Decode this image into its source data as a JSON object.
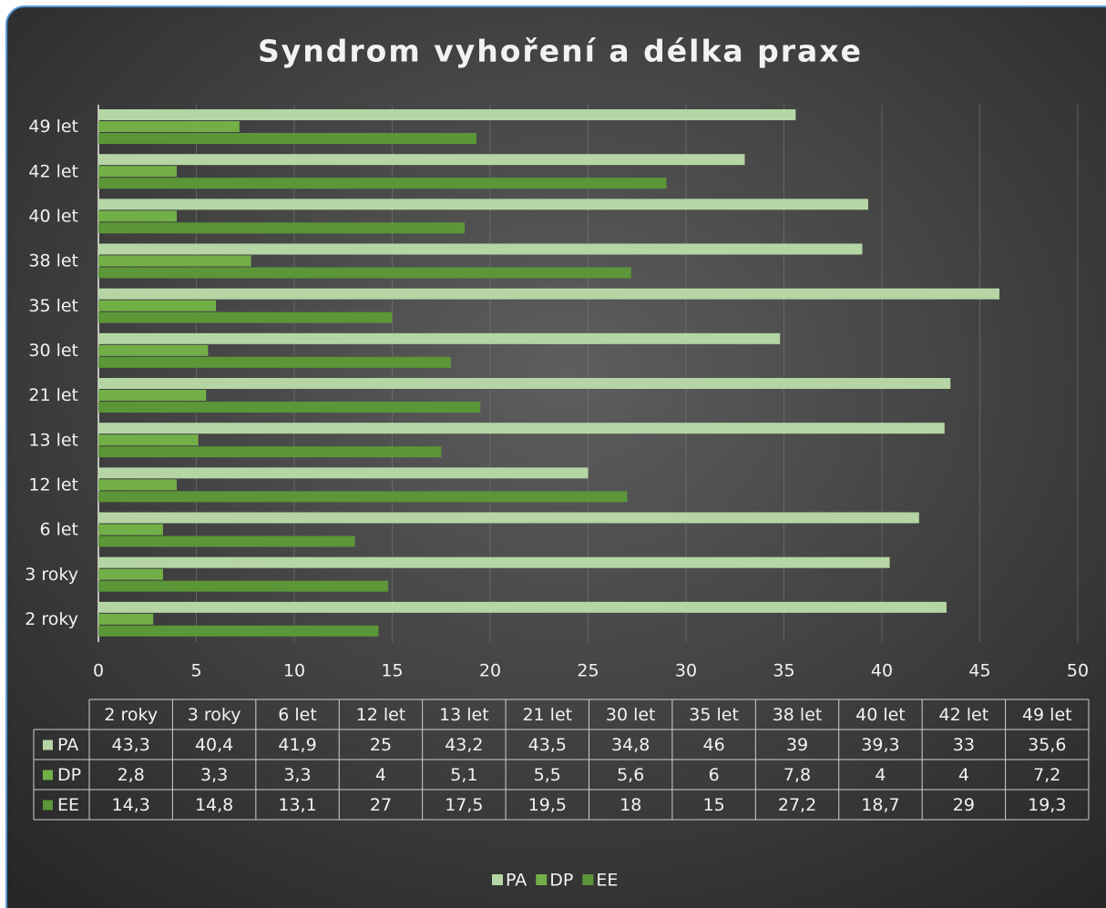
{
  "chart_data": {
    "type": "bar",
    "orientation": "horizontal",
    "title": "Syndrom vyhoření a délka praxe",
    "categories": [
      "2 roky",
      "3 roky",
      "6 let",
      "12 let",
      "13 let",
      "21 let",
      "30 let",
      "35 let",
      "38 let",
      "40 let",
      "42 let",
      "49 let"
    ],
    "series": [
      {
        "name": "PA",
        "color": "#b5d6a4",
        "values": [
          43.3,
          40.4,
          41.9,
          25,
          43.2,
          43.5,
          34.8,
          46,
          39,
          39.3,
          33,
          35.6
        ],
        "value_labels": [
          "43,3",
          "40,4",
          "41,9",
          "25",
          "43,2",
          "43,5",
          "34,8",
          "46",
          "39",
          "39,3",
          "33",
          "35,6"
        ]
      },
      {
        "name": "DP",
        "color": "#72b047",
        "values": [
          2.8,
          3.3,
          3.3,
          4,
          5.1,
          5.5,
          5.6,
          6,
          7.8,
          4,
          4,
          7.2
        ],
        "value_labels": [
          "2,8",
          "3,3",
          "3,3",
          "4",
          "5,1",
          "5,5",
          "5,6",
          "6",
          "7,8",
          "4",
          "4",
          "7,2"
        ]
      },
      {
        "name": "EE",
        "color": "#5b9638",
        "values": [
          14.3,
          14.8,
          13.1,
          27,
          17.5,
          19.5,
          18,
          15,
          27.2,
          18.7,
          29,
          19.3
        ],
        "value_labels": [
          "14,3",
          "14,8",
          "13,1",
          "27",
          "17,5",
          "19,5",
          "18",
          "15",
          "27,2",
          "18,7",
          "29",
          "19,3"
        ]
      }
    ],
    "xlim": [
      0,
      50
    ],
    "xticks": [
      0,
      5,
      10,
      15,
      20,
      25,
      30,
      35,
      40,
      45,
      50
    ],
    "grid": true,
    "data_table": true,
    "legend": "bottom"
  }
}
